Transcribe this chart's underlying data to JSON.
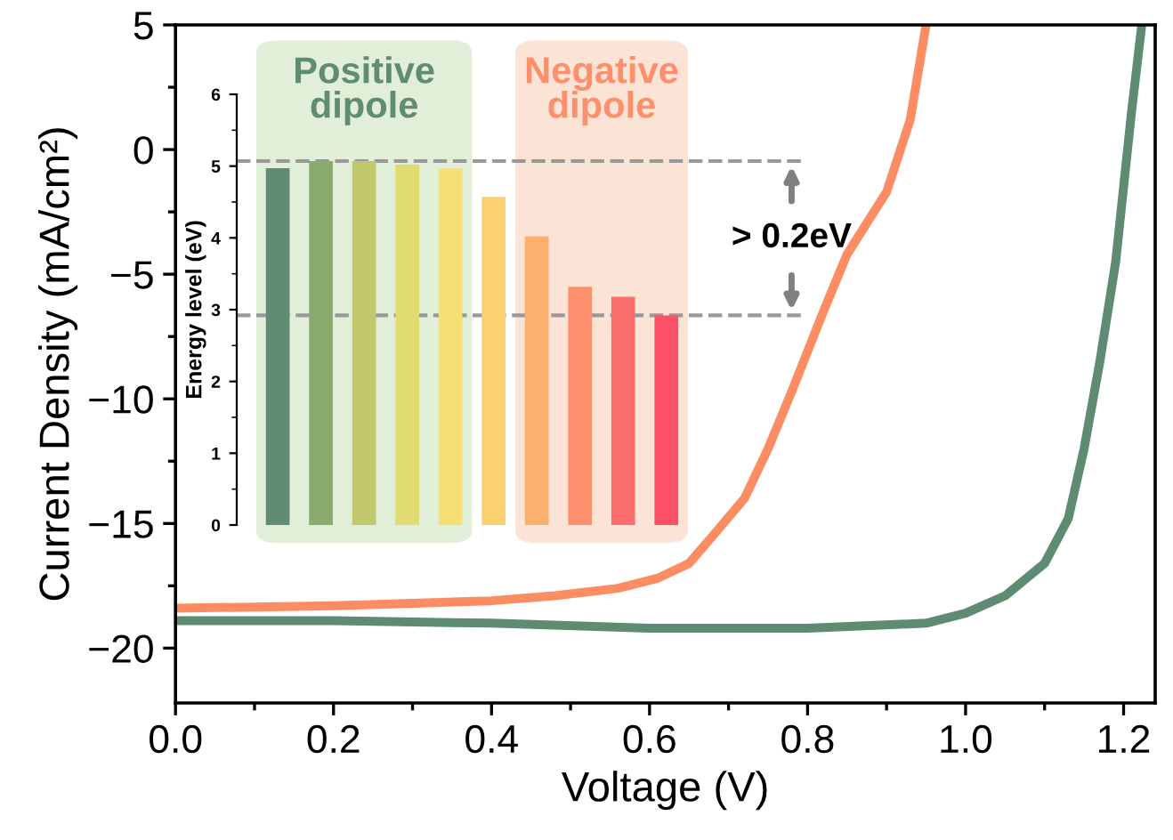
{
  "chart_data": [
    {
      "type": "line",
      "xlabel": "Voltage (V)",
      "ylabel": "Current Density (mA/cm²)",
      "xlim": [
        0,
        1.24
      ],
      "ylim": [
        -22.2,
        5
      ],
      "xticks": [
        {
          "value": 0,
          "label": "0.0"
        },
        {
          "value": 0.2,
          "label": "0.2"
        },
        {
          "value": 0.4,
          "label": "0.4"
        },
        {
          "value": 0.6,
          "label": "0.6"
        },
        {
          "value": 0.8,
          "label": "0.8"
        },
        {
          "value": 1.0,
          "label": "1.0"
        },
        {
          "value": 1.2,
          "label": "1.2"
        }
      ],
      "yticks": [
        5,
        0,
        {
          "value": -5,
          "label": "−5"
        },
        {
          "value": -10,
          "label": "−10"
        },
        {
          "value": -15,
          "label": "−15"
        },
        {
          "value": -20,
          "label": "−20"
        }
      ],
      "grid": false,
      "legend": false,
      "marker": "none",
      "line_style": "solid",
      "series": [
        {
          "color": "#fc8d62",
          "x": [
            0,
            0.1,
            0.2,
            0.3,
            0.4,
            0.48,
            0.56,
            0.61,
            0.65,
            0.68,
            0.72,
            0.75,
            0.78,
            0.82,
            0.85,
            0.9,
            0.93,
            0.95
          ],
          "values": [
            -18.4,
            -18.35,
            -18.3,
            -18.2,
            -18.1,
            -17.9,
            -17.6,
            -17.2,
            -16.6,
            -15.5,
            -14.0,
            -12.0,
            -9.7,
            -6.5,
            -4.2,
            -1.7,
            1.2,
            5
          ]
        },
        {
          "color": "#5e8c72",
          "x": [
            0,
            0.2,
            0.4,
            0.6,
            0.8,
            0.95,
            1.0,
            1.05,
            1.1,
            1.13,
            1.15,
            1.17,
            1.19,
            1.2,
            1.21,
            1.223
          ],
          "values": [
            -18.9,
            -18.9,
            -19.0,
            -19.2,
            -19.2,
            -19.0,
            -18.6,
            -17.9,
            -16.6,
            -14.8,
            -12.0,
            -8.5,
            -4.5,
            -1.5,
            1.5,
            5
          ]
        }
      ]
    },
    {
      "type": "bar",
      "ylabel": "Energy level (eV)",
      "ylim": [
        0,
        6
      ],
      "yticks": [
        0,
        1,
        2,
        3,
        4,
        5,
        6
      ],
      "tick_labels": "y",
      "categories": [
        null,
        null,
        null,
        null,
        null,
        null,
        null,
        null,
        null,
        null
      ],
      "values": [
        4.97,
        5.07,
        5.07,
        5.02,
        4.97,
        4.57,
        4.02,
        3.32,
        3.18,
        2.92
      ],
      "colors": [
        "#5f8c73",
        "#8aab6e",
        "#c0c76c",
        "#e0dc72",
        "#f6df73",
        "#fbd06f",
        "#fbb06d",
        "#fc906d",
        "#fc6e6e",
        "#fc4f68"
      ],
      "ref_lines": [
        {
          "axis": "y",
          "value": 5.07,
          "color": "#999999",
          "line_style": "dashed"
        },
        {
          "axis": "y",
          "value": 2.92,
          "color": "#999999",
          "line_style": "dashed"
        }
      ],
      "annotations": [
        "Positive\ndipole",
        "Negative\ndipole",
        "> 0.2eV"
      ]
    }
  ]
}
